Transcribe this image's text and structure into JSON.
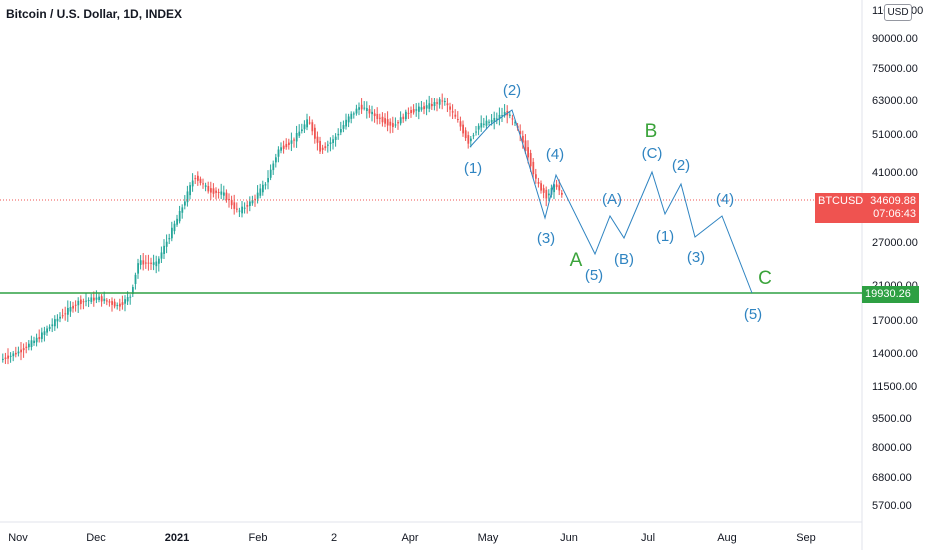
{
  "header": {
    "title": "Bitcoin / U.S. Dollar, 1D, INDEX"
  },
  "currency_badge": "USD",
  "price_axis": {
    "labels": [
      "110000.00",
      "90000.00",
      "75000.00",
      "63000.00",
      "51000.00",
      "41000.00",
      "27000.00",
      "21000.00",
      "17000.00",
      "14000.00",
      "11500.00",
      "9500.00",
      "8000.00",
      "6800.00",
      "5700.00"
    ]
  },
  "time_axis": {
    "labels": [
      {
        "text": "Nov",
        "bold": false
      },
      {
        "text": "Dec",
        "bold": false
      },
      {
        "text": "2021",
        "bold": true
      },
      {
        "text": "Feb",
        "bold": false
      },
      {
        "text": "2",
        "bold": false
      },
      {
        "text": "Apr",
        "bold": false
      },
      {
        "text": "May",
        "bold": false
      },
      {
        "text": "Jun",
        "bold": false
      },
      {
        "text": "Jul",
        "bold": false
      },
      {
        "text": "Aug",
        "bold": false
      },
      {
        "text": "Sep",
        "bold": false
      }
    ]
  },
  "current_price": {
    "symbol": "BTCUSD",
    "price": "34609.88",
    "countdown": "07:06:43",
    "color": "#ef5350"
  },
  "support_line": {
    "price": "19930.26",
    "color": "#2ea043"
  },
  "wave_labels": {
    "blue": [
      "(1)",
      "(2)",
      "(3)",
      "(4)",
      "(5)",
      "(A)",
      "(B)",
      "(C)",
      "(1)",
      "(2)",
      "(3)",
      "(4)",
      "(5)"
    ],
    "green": [
      "A",
      "B",
      "C"
    ]
  },
  "colors": {
    "up": "#26a69a",
    "down": "#ef5350",
    "wave": "#2f84c1",
    "abc": "#3aa33a"
  }
}
